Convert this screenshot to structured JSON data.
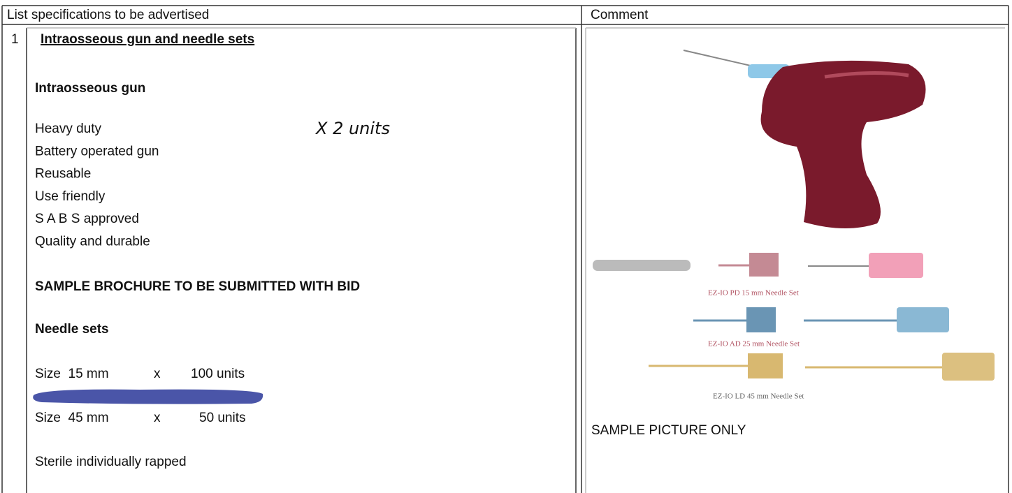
{
  "header": {
    "spec_column": "List specifications to be advertised",
    "comment_column": "Comment"
  },
  "item": {
    "number": "1",
    "title": "Intraosseous gun and needle sets",
    "gun_heading": "Intraosseous gun",
    "gun_features": [
      "Heavy duty",
      "Battery operated gun",
      "Reusable",
      "Use friendly",
      "S A B S approved",
      "Quality and durable"
    ],
    "handwritten_note": "X 2 units",
    "brochure_note": "SAMPLE BROCHURE TO BE SUBMITTED WITH BID",
    "needle_heading": "Needle sets",
    "needle_sizes": [
      {
        "size": "Size  15 mm",
        "times": "x",
        "quantity": "100 units"
      },
      {
        "size": "Size  45 mm",
        "times": "x",
        "quantity": "50 units"
      }
    ],
    "sterile_note": "Sterile individually rapped"
  },
  "comment": {
    "captions": [
      "EZ-IO PD 15 mm Needle Set",
      "EZ-IO AD 25 mm Needle Set",
      "EZ-IO LD 45 mm Needle Set"
    ],
    "picture_note": "SAMPLE PICTURE ONLY"
  }
}
